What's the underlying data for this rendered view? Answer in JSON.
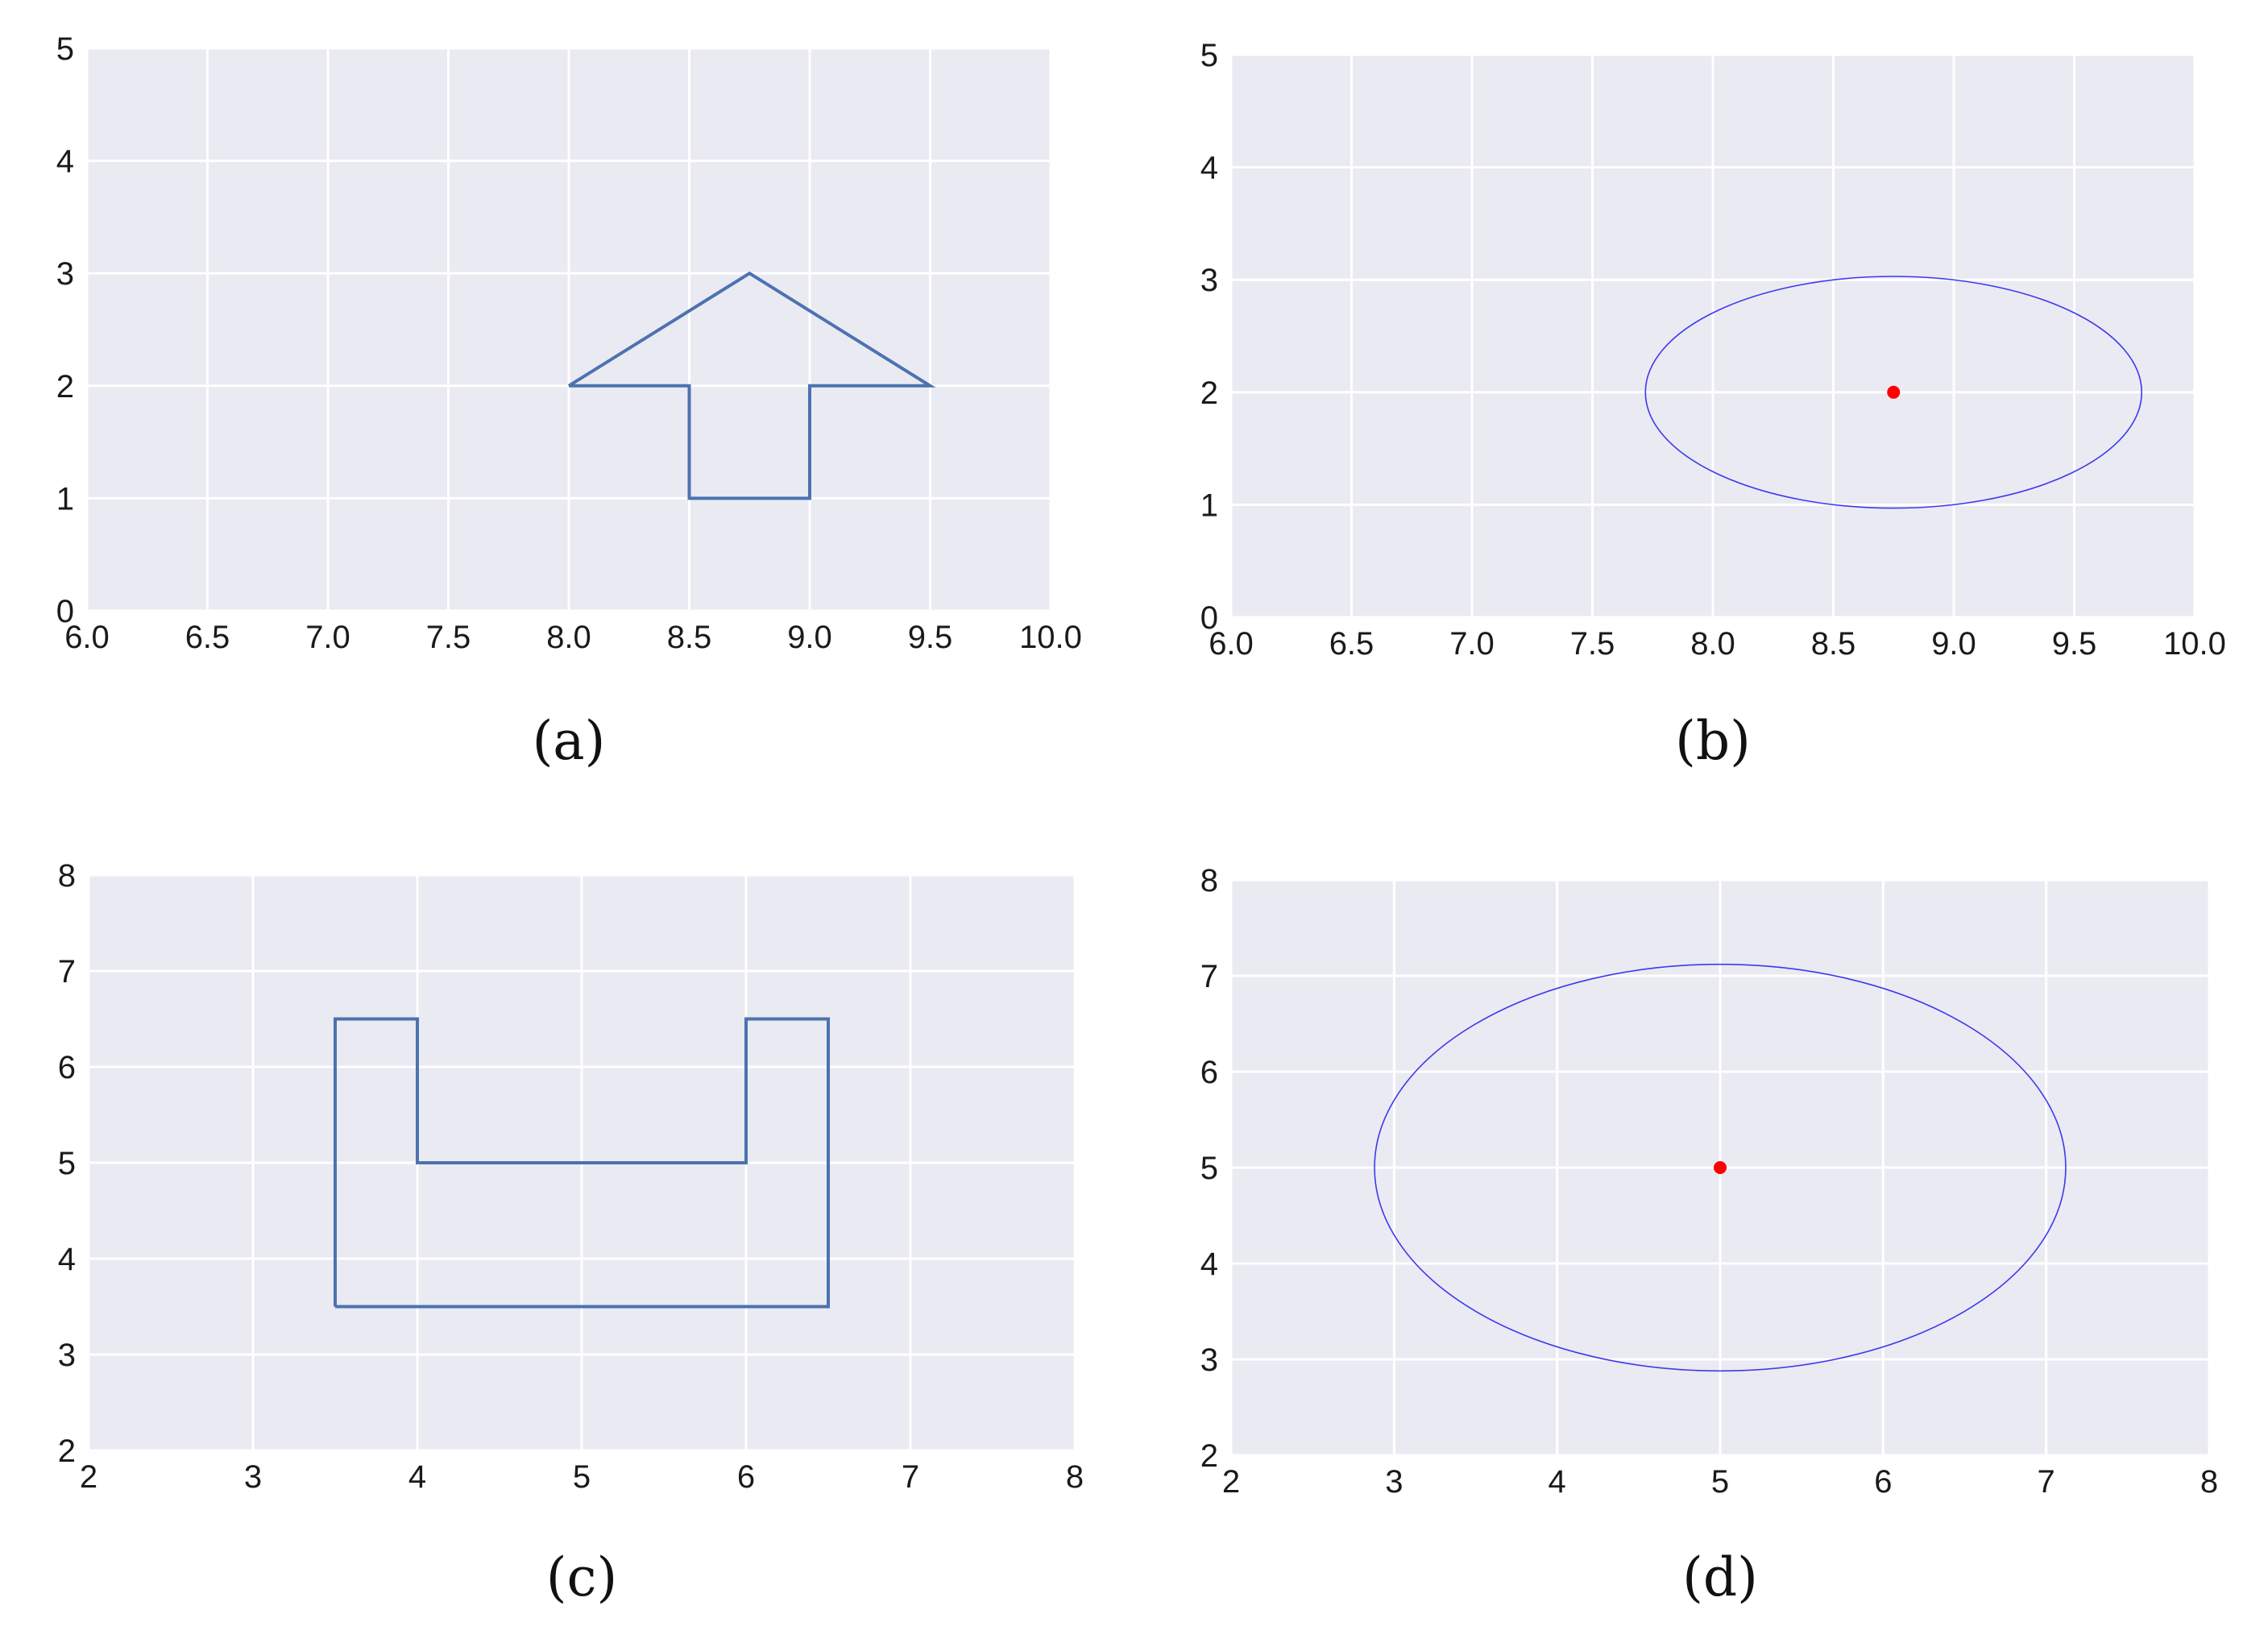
{
  "colors": {
    "plot_background": "#eaeaf2",
    "grid": "#ffffff",
    "polygon_line": "#4c72b0",
    "ellipse_line": "#3a3af0",
    "centroid_point": "#ff0000"
  },
  "chart_data": [
    {
      "id": "a",
      "type": "line",
      "caption": "(a)",
      "xlim": [
        6.0,
        10.0
      ],
      "ylim": [
        0,
        5
      ],
      "xticks": [
        "6.0",
        "6.5",
        "7.0",
        "7.5",
        "8.0",
        "8.5",
        "9.0",
        "9.5",
        "10.0"
      ],
      "yticks": [
        "0",
        "1",
        "2",
        "3",
        "4",
        "5"
      ],
      "grid": true,
      "series": [
        {
          "kind": "polygon",
          "x": [
            8.0,
            8.75,
            9.5,
            9.0,
            9.0,
            8.5,
            8.5,
            8.0
          ],
          "y": [
            2,
            3,
            2,
            2,
            1,
            1,
            2,
            2
          ]
        }
      ]
    },
    {
      "id": "b",
      "type": "scatter",
      "caption": "(b)",
      "xlim": [
        6.0,
        10.0
      ],
      "ylim": [
        0,
        5
      ],
      "xticks": [
        "6.0",
        "6.5",
        "7.0",
        "7.5",
        "8.0",
        "8.5",
        "9.0",
        "9.5",
        "10.0"
      ],
      "yticks": [
        "0",
        "1",
        "2",
        "3",
        "4",
        "5"
      ],
      "grid": true,
      "series": [
        {
          "kind": "ellipse",
          "cx": 8.75,
          "cy": 2.0,
          "rx": 1.03,
          "ry": 1.03
        },
        {
          "kind": "point",
          "x": 8.75,
          "y": 2.0
        }
      ]
    },
    {
      "id": "c",
      "type": "line",
      "caption": "(c)",
      "xlim": [
        2,
        8
      ],
      "ylim": [
        2,
        8
      ],
      "xticks": [
        "2",
        "3",
        "4",
        "5",
        "6",
        "7",
        "8"
      ],
      "yticks": [
        "2",
        "3",
        "4",
        "5",
        "6",
        "7",
        "8"
      ],
      "grid": true,
      "series": [
        {
          "kind": "polygon",
          "x": [
            3.5,
            3.5,
            4.0,
            4.0,
            6.0,
            6.0,
            6.5,
            6.5,
            3.5
          ],
          "y": [
            3.5,
            6.5,
            6.5,
            5.0,
            5.0,
            6.5,
            6.5,
            3.5,
            3.5
          ]
        }
      ]
    },
    {
      "id": "d",
      "type": "scatter",
      "caption": "(d)",
      "xlim": [
        2,
        8
      ],
      "ylim": [
        2,
        8
      ],
      "xticks": [
        "2",
        "3",
        "4",
        "5",
        "6",
        "7",
        "8"
      ],
      "yticks": [
        "2",
        "3",
        "4",
        "5",
        "6",
        "7",
        "8"
      ],
      "grid": true,
      "series": [
        {
          "kind": "ellipse",
          "cx": 5.0,
          "cy": 5.0,
          "rx": 2.12,
          "ry": 2.12
        },
        {
          "kind": "point",
          "x": 5.0,
          "y": 5.0
        }
      ]
    }
  ]
}
